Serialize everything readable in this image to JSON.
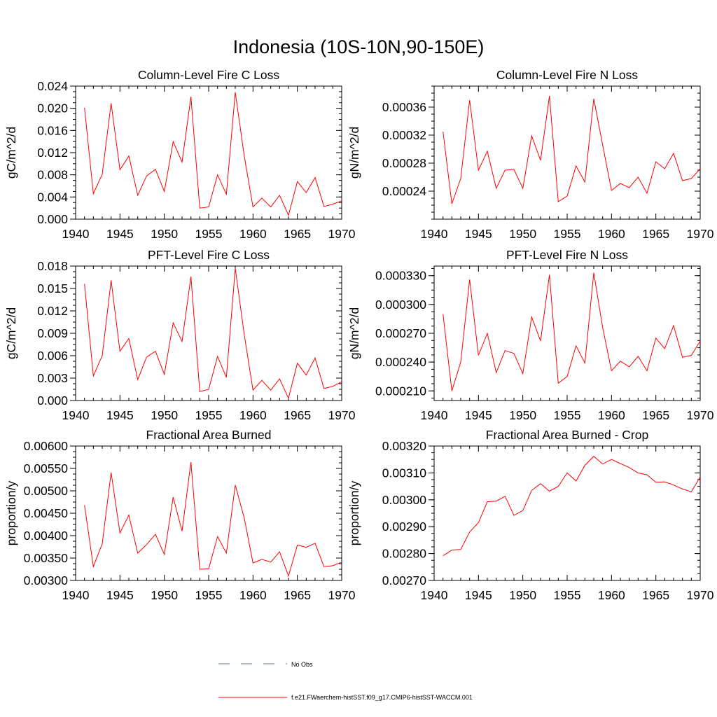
{
  "figure": {
    "title": "Indonesia (10S-10N,90-150E)",
    "legend": {
      "items": [
        {
          "label": "No Obs",
          "color": "#5a6fb8",
          "style": "dashed"
        },
        {
          "label": "f.e21.FWaerchem-histSST.f09_g17.CMIP6-histSST-WACCM.001",
          "color": "#ff0000",
          "style": "solid"
        }
      ]
    },
    "line_color": "#ff0000"
  },
  "chart_data": [
    {
      "type": "line",
      "title": "Column-Level Fire C Loss",
      "ylabel": "gC/m^2/d",
      "xlim": [
        1940,
        1970
      ],
      "ylim": [
        0,
        0.024
      ],
      "xticks": [
        "1940",
        "1945",
        "1950",
        "1955",
        "1960",
        "1965",
        "1970"
      ],
      "yticks": [
        "0.000",
        "0.004",
        "0.008",
        "0.012",
        "0.016",
        "0.020",
        "0.024"
      ],
      "yticks_values": [
        0,
        0.004,
        0.008,
        0.012,
        0.016,
        0.02,
        0.024
      ],
      "x": [
        1941,
        1942,
        1943,
        1944,
        1945,
        1946,
        1947,
        1948,
        1949,
        1950,
        1951,
        1952,
        1953,
        1954,
        1955,
        1956,
        1957,
        1958,
        1959,
        1960,
        1961,
        1962,
        1963,
        1964,
        1965,
        1966,
        1967,
        1968,
        1969,
        1970
      ],
      "values": [
        0.0201,
        0.0046,
        0.0081,
        0.0209,
        0.0089,
        0.0114,
        0.0043,
        0.0078,
        0.009,
        0.005,
        0.014,
        0.0103,
        0.0221,
        0.002,
        0.0022,
        0.008,
        0.0045,
        0.0229,
        0.0115,
        0.0022,
        0.0038,
        0.0022,
        0.0043,
        0.0007,
        0.0068,
        0.0048,
        0.0075,
        0.0023,
        0.0027,
        0.0033
      ]
    },
    {
      "type": "line",
      "title": "Column-Level Fire N Loss",
      "ylabel": "gN/m^2/d",
      "xlim": [
        1940,
        1970
      ],
      "ylim": [
        0.0002,
        0.00039
      ],
      "xticks": [
        "1940",
        "1945",
        "1950",
        "1955",
        "1960",
        "1965",
        "1970"
      ],
      "yticks": [
        "0.00024",
        "0.00028",
        "0.00032",
        "0.00036"
      ],
      "yticks_values": [
        0.00024,
        0.00028,
        0.00032,
        0.00036
      ],
      "x": [
        1941,
        1942,
        1943,
        1944,
        1945,
        1946,
        1947,
        1948,
        1949,
        1950,
        1951,
        1952,
        1953,
        1954,
        1955,
        1956,
        1957,
        1958,
        1959,
        1960,
        1961,
        1962,
        1963,
        1964,
        1965,
        1966,
        1967,
        1968,
        1969,
        1970
      ],
      "values": [
        0.000325,
        0.000222,
        0.000258,
        0.00037,
        0.00027,
        0.000297,
        0.000244,
        0.00027,
        0.000271,
        0.000244,
        0.000319,
        0.000284,
        0.000376,
        0.000225,
        0.000233,
        0.000276,
        0.000253,
        0.000372,
        0.000306,
        0.000241,
        0.000251,
        0.000245,
        0.00026,
        0.000237,
        0.000282,
        0.000272,
        0.000294,
        0.000255,
        0.000258,
        0.000272
      ]
    },
    {
      "type": "line",
      "title": "PFT-Level Fire C Loss",
      "ylabel": "gC/m^2/d",
      "xlim": [
        1940,
        1970
      ],
      "ylim": [
        0,
        0.018
      ],
      "xticks": [
        "1940",
        "1945",
        "1950",
        "1955",
        "1960",
        "1965",
        "1970"
      ],
      "yticks": [
        "0.000",
        "0.003",
        "0.006",
        "0.009",
        "0.012",
        "0.015",
        "0.018"
      ],
      "yticks_values": [
        0,
        0.003,
        0.006,
        0.009,
        0.012,
        0.015,
        0.018
      ],
      "x": [
        1941,
        1942,
        1943,
        1944,
        1945,
        1946,
        1947,
        1948,
        1949,
        1950,
        1951,
        1952,
        1953,
        1954,
        1955,
        1956,
        1957,
        1958,
        1959,
        1960,
        1961,
        1962,
        1963,
        1964,
        1965,
        1966,
        1967,
        1968,
        1969,
        1970
      ],
      "values": [
        0.0156,
        0.0033,
        0.006,
        0.0161,
        0.0066,
        0.0083,
        0.0028,
        0.0058,
        0.0066,
        0.0035,
        0.0104,
        0.0079,
        0.0166,
        0.0012,
        0.0015,
        0.0059,
        0.0031,
        0.0177,
        0.0089,
        0.0014,
        0.0027,
        0.0014,
        0.0029,
        0.0003,
        0.005,
        0.0034,
        0.0057,
        0.0016,
        0.0019,
        0.0025
      ]
    },
    {
      "type": "line",
      "title": "PFT-Level Fire N Loss",
      "ylabel": "gN/m^2/d",
      "xlim": [
        1940,
        1970
      ],
      "ylim": [
        0.0002,
        0.00034
      ],
      "xticks": [
        "1940",
        "1945",
        "1950",
        "1955",
        "1960",
        "1965",
        "1970"
      ],
      "yticks": [
        "0.000210",
        "0.000240",
        "0.000270",
        "0.000300",
        "0.000330"
      ],
      "yticks_values": [
        0.00021,
        0.00024,
        0.00027,
        0.0003,
        0.00033
      ],
      "x": [
        1941,
        1942,
        1943,
        1944,
        1945,
        1946,
        1947,
        1948,
        1949,
        1950,
        1951,
        1952,
        1953,
        1954,
        1955,
        1956,
        1957,
        1958,
        1959,
        1960,
        1961,
        1962,
        1963,
        1964,
        1965,
        1966,
        1967,
        1968,
        1969,
        1970
      ],
      "values": [
        0.00029,
        0.00021,
        0.00024,
        0.000326,
        0.000247,
        0.00027,
        0.000229,
        0.000252,
        0.000249,
        0.000228,
        0.000287,
        0.000262,
        0.000331,
        0.000218,
        0.000225,
        0.000257,
        0.000239,
        0.000333,
        0.000276,
        0.000231,
        0.000241,
        0.000235,
        0.000246,
        0.000231,
        0.000265,
        0.000254,
        0.000278,
        0.000245,
        0.000247,
        0.000262
      ]
    },
    {
      "type": "line",
      "title": "Fractional Area Burned",
      "ylabel": "proportion/y",
      "xlim": [
        1940,
        1970
      ],
      "ylim": [
        0.003,
        0.006
      ],
      "xticks": [
        "1940",
        "1945",
        "1950",
        "1955",
        "1960",
        "1965",
        "1970"
      ],
      "yticks": [
        "0.00300",
        "0.00350",
        "0.00400",
        "0.00450",
        "0.00500",
        "0.00550",
        "0.00600"
      ],
      "yticks_values": [
        0.003,
        0.0035,
        0.004,
        0.0045,
        0.005,
        0.0055,
        0.006
      ],
      "x": [
        1941,
        1942,
        1943,
        1944,
        1945,
        1946,
        1947,
        1948,
        1949,
        1950,
        1951,
        1952,
        1953,
        1954,
        1955,
        1956,
        1957,
        1958,
        1959,
        1960,
        1961,
        1962,
        1963,
        1964,
        1965,
        1966,
        1967,
        1968,
        1969,
        1970
      ],
      "values": [
        0.00468,
        0.00331,
        0.00382,
        0.00541,
        0.00406,
        0.00446,
        0.00361,
        0.0038,
        0.00403,
        0.00358,
        0.00486,
        0.0041,
        0.00564,
        0.00325,
        0.00326,
        0.00398,
        0.00361,
        0.00513,
        0.0044,
        0.00339,
        0.00347,
        0.00341,
        0.00364,
        0.0031,
        0.00379,
        0.00374,
        0.00383,
        0.00331,
        0.00333,
        0.00341
      ]
    },
    {
      "type": "line",
      "title": "Fractional Area Burned - Crop",
      "ylabel": "proportion/y",
      "xlim": [
        1940,
        1970
      ],
      "ylim": [
        0.0027,
        0.0032
      ],
      "xticks": [
        "1940",
        "1945",
        "1950",
        "1955",
        "1960",
        "1965",
        "1970"
      ],
      "yticks": [
        "0.00270",
        "0.00280",
        "0.00290",
        "0.00300",
        "0.00310",
        "0.00320"
      ],
      "yticks_values": [
        0.0027,
        0.0028,
        0.0029,
        0.003,
        0.0031,
        0.0032
      ],
      "x": [
        1941,
        1942,
        1943,
        1944,
        1945,
        1946,
        1947,
        1948,
        1949,
        1950,
        1951,
        1952,
        1953,
        1954,
        1955,
        1956,
        1957,
        1958,
        1959,
        1960,
        1961,
        1962,
        1963,
        1964,
        1965,
        1966,
        1967,
        1968,
        1969,
        1970
      ],
      "values": [
        0.002792,
        0.002813,
        0.002815,
        0.00288,
        0.002915,
        0.002993,
        0.002995,
        0.003013,
        0.002942,
        0.00296,
        0.003035,
        0.00306,
        0.003032,
        0.00305,
        0.0031,
        0.00307,
        0.003128,
        0.003162,
        0.003133,
        0.00315,
        0.003135,
        0.00312,
        0.0031,
        0.003093,
        0.003065,
        0.003067,
        0.003055,
        0.00304,
        0.00303,
        0.003085
      ]
    }
  ]
}
